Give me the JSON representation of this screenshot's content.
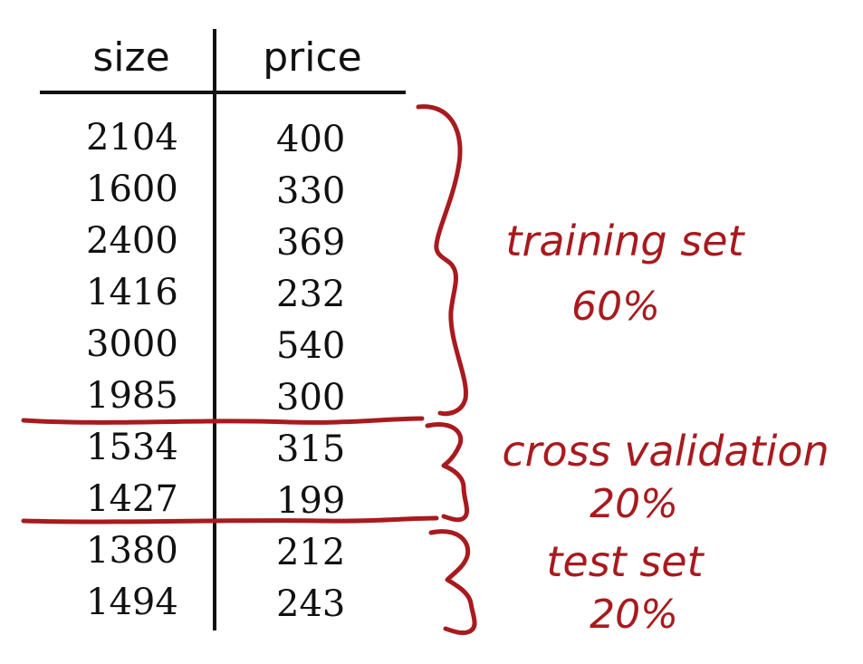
{
  "table": {
    "headers": [
      "size",
      "price"
    ],
    "rows": [
      [
        "2104",
        "400"
      ],
      [
        "1600",
        "330"
      ],
      [
        "2400",
        "369"
      ],
      [
        "1416",
        "232"
      ],
      [
        "3000",
        "540"
      ],
      [
        "1985",
        "300"
      ],
      [
        "1534",
        "315"
      ],
      [
        "1427",
        "199"
      ],
      [
        "1380",
        "212"
      ],
      [
        "1494",
        "243"
      ]
    ]
  },
  "annotations": {
    "training": {
      "label": "training set",
      "percent": "60%"
    },
    "cross_validation": {
      "label": "cross validation",
      "percent": "20%"
    },
    "test": {
      "label": "test set",
      "percent": "20%"
    }
  },
  "colors": {
    "ink": "#111111",
    "annotation": "#a81a1e"
  }
}
